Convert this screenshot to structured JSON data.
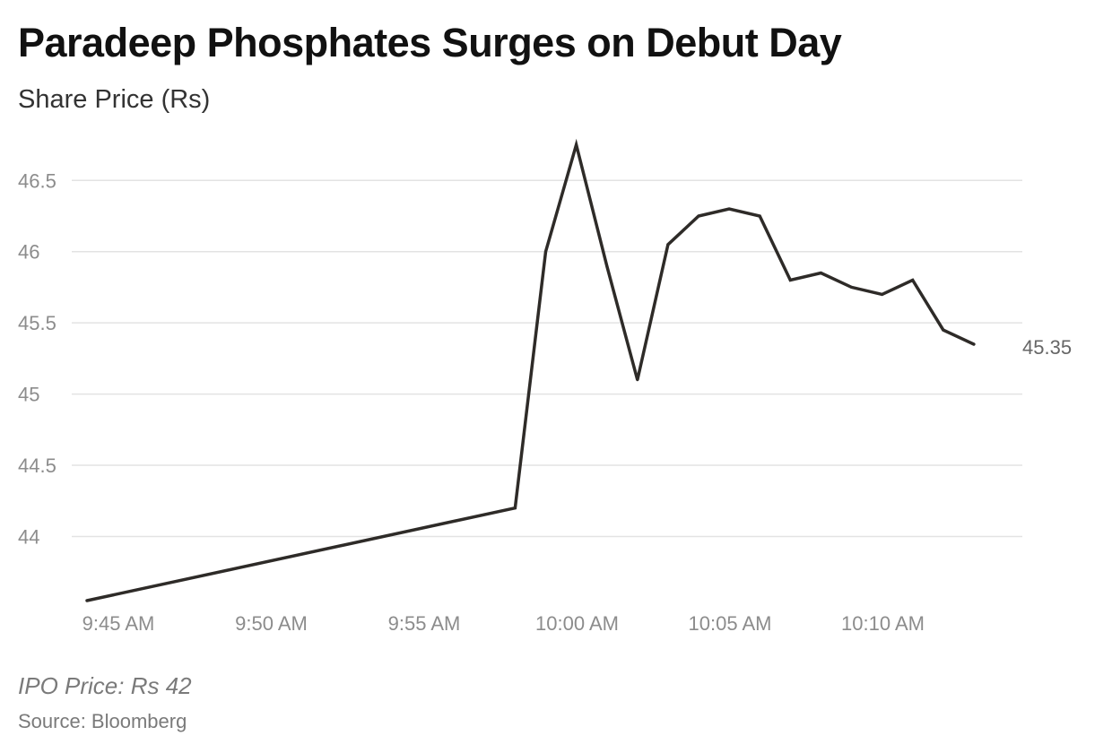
{
  "header": {
    "title": "Paradeep Phosphates Surges on Debut Day",
    "subtitle": "Share Price (Rs)"
  },
  "footer": {
    "note": "IPO Price: Rs 42",
    "source": "Source: Bloomberg"
  },
  "colors": {
    "line": "#2e2b28",
    "grid": "#e3e3e3",
    "tick_text": "#8c8c8c",
    "end_label": "#666666"
  },
  "chart_data": {
    "type": "line",
    "title": "Paradeep Phosphates Surges on Debut Day",
    "ylabel": "Share Price (Rs)",
    "xlabel": "",
    "x_ticks": [
      "9:45 AM",
      "9:50 AM",
      "9:55 AM",
      "10:00 AM",
      "10:05 AM",
      "10:10 AM"
    ],
    "y_ticks": [
      "44",
      "44.5",
      "45",
      "45.5",
      "46",
      "46.5"
    ],
    "ylim": [
      43.55,
      46.75
    ],
    "xlim": [
      "9:45 AM",
      "10:15 AM"
    ],
    "grid": true,
    "legend": "none",
    "end_label": "45.35",
    "series": [
      {
        "values": [
          {
            "x": "9:45 AM",
            "y": 43.55
          },
          {
            "x": "9:59 AM",
            "y": 44.2
          },
          {
            "x": "10:00 AM",
            "y": 46.0
          },
          {
            "x": "10:01 AM",
            "y": 46.75
          },
          {
            "x": "10:02 AM",
            "y": 45.9
          },
          {
            "x": "10:03 AM",
            "y": 45.1
          },
          {
            "x": "10:04 AM",
            "y": 46.05
          },
          {
            "x": "10:05 AM",
            "y": 46.25
          },
          {
            "x": "10:06 AM",
            "y": 46.3
          },
          {
            "x": "10:07 AM",
            "y": 46.25
          },
          {
            "x": "10:08 AM",
            "y": 45.8
          },
          {
            "x": "10:09 AM",
            "y": 45.85
          },
          {
            "x": "10:10 AM",
            "y": 45.75
          },
          {
            "x": "10:11 AM",
            "y": 45.7
          },
          {
            "x": "10:12 AM",
            "y": 45.8
          },
          {
            "x": "10:13 AM",
            "y": 45.45
          },
          {
            "x": "10:14 AM",
            "y": 45.35
          }
        ]
      }
    ]
  }
}
